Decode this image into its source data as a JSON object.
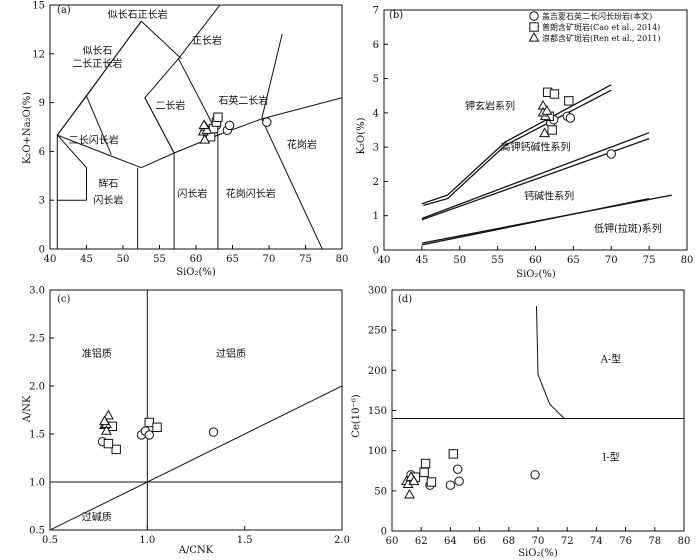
{
  "figure_markers": {
    "circle": "circle",
    "square": "square",
    "triangle": "triangle"
  },
  "chart_data": [
    {
      "id": "a",
      "type": "scatter",
      "panel_label": "(a)",
      "xlabel": "SiO₂(%)",
      "ylabel": "K₂O+Na₂O(%)",
      "xlim": [
        40,
        80
      ],
      "ylim": [
        0,
        15
      ],
      "xticks": [
        40,
        45,
        50,
        55,
        60,
        65,
        70,
        75,
        80
      ],
      "yticks": [
        0,
        3,
        6,
        9,
        12,
        15
      ],
      "field_lines": [
        [
          [
            41,
            0
          ],
          [
            41,
            7
          ],
          [
            52.5,
            14
          ]
        ],
        [
          [
            41,
            7
          ],
          [
            45,
            9.4
          ],
          [
            48.4,
            11.5
          ]
        ],
        [
          [
            41,
            7
          ],
          [
            52.5,
            5
          ]
        ],
        [
          [
            45,
            9.4
          ],
          [
            48.4,
            5.8
          ]
        ],
        [
          [
            52,
            0
          ],
          [
            52,
            5
          ]
        ],
        [
          [
            57,
            0
          ],
          [
            57,
            5.9
          ],
          [
            53,
            9.3
          ],
          [
            57.6,
            11.7
          ]
        ],
        [
          [
            48.4,
            11.5
          ],
          [
            52.5,
            14
          ]
        ],
        [
          [
            52.5,
            14
          ],
          [
            58,
            11.7
          ]
        ],
        [
          [
            57.6,
            11.7
          ],
          [
            65,
            16
          ]
        ],
        [
          [
            41,
            3
          ],
          [
            45,
            3
          ]
        ],
        [
          [
            45,
            3
          ],
          [
            45,
            5
          ],
          [
            41,
            7
          ]
        ],
        [
          [
            52.5,
            5
          ],
          [
            57,
            5.9
          ],
          [
            63,
            7
          ],
          [
            69,
            8
          ],
          [
            77.3,
            0
          ]
        ],
        [
          [
            63,
            0
          ],
          [
            63,
            7
          ],
          [
            61.2,
            8.6
          ]
        ],
        [
          [
            69,
            8
          ],
          [
            71.8,
            13.2
          ]
        ],
        [
          [
            69,
            8
          ],
          [
            80,
            9.3
          ]
        ],
        [
          [
            57,
            5.9
          ],
          [
            53,
            9.3
          ]
        ],
        [
          [
            61.2,
            8.6
          ],
          [
            57.6,
            11.7
          ]
        ]
      ],
      "field_labels": [
        {
          "text": "似长石正长岩",
          "x": 52,
          "y": 14.2
        },
        {
          "text": "正长岩",
          "x": 61.5,
          "y": 12.6
        },
        {
          "text": "似长石",
          "x": 46.5,
          "y": 12
        },
        {
          "text": "二长正长岩",
          "x": 46.5,
          "y": 11.2
        },
        {
          "text": "二长岩",
          "x": 56.5,
          "y": 8.6
        },
        {
          "text": "石英二长岩",
          "x": 66.5,
          "y": 8.9
        },
        {
          "text": "二长闪长岩",
          "x": 46,
          "y": 6.5
        },
        {
          "text": "花岗岩",
          "x": 74.5,
          "y": 6.2
        },
        {
          "text": "辉石",
          "x": 48,
          "y": 3.8
        },
        {
          "text": "闪长岩",
          "x": 48,
          "y": 2.8
        },
        {
          "text": "闪长岩",
          "x": 59.5,
          "y": 3.2
        },
        {
          "text": "花岗闪长岩",
          "x": 67.5,
          "y": 3.2
        }
      ],
      "series": [
        {
          "marker": "circle",
          "points": [
            [
              62.2,
              7.4
            ],
            [
              62.8,
              7.6
            ],
            [
              64.3,
              7.3
            ],
            [
              64.6,
              7.6
            ],
            [
              69.7,
              7.8
            ]
          ]
        },
        {
          "marker": "square",
          "points": [
            [
              61.6,
              7.2
            ],
            [
              62,
              6.9
            ],
            [
              62.4,
              7.4
            ],
            [
              62.8,
              7.8
            ],
            [
              63,
              8.1
            ]
          ]
        },
        {
          "marker": "triangle",
          "points": [
            [
              61.0,
              7.2
            ],
            [
              61.3,
              7.5
            ],
            [
              61.5,
              7.3
            ],
            [
              61.1,
              7.6
            ],
            [
              61.2,
              6.7
            ]
          ]
        }
      ]
    },
    {
      "id": "b",
      "type": "scatter",
      "panel_label": "(b)",
      "xlabel": "SiO₂(%)",
      "ylabel": "K₂O(%)",
      "xlim": [
        40,
        80
      ],
      "ylim": [
        0,
        7
      ],
      "xticks": [
        40,
        45,
        50,
        55,
        60,
        65,
        70,
        75,
        80
      ],
      "yticks": [
        0,
        1,
        2,
        3,
        4,
        5,
        6,
        7
      ],
      "field_lines": [
        [
          [
            45,
            1.35
          ],
          [
            48.4,
            1.6
          ],
          [
            56,
            3.15
          ],
          [
            70,
            4.82
          ]
        ],
        [
          [
            45.2,
            1.3
          ],
          [
            48.4,
            1.5
          ],
          [
            56,
            3.05
          ],
          [
            70,
            4.66
          ]
        ],
        [
          [
            45,
            0.92
          ],
          [
            75,
            3.42
          ]
        ],
        [
          [
            45,
            0.88
          ],
          [
            75,
            3.25
          ]
        ],
        [
          [
            45,
            0.2
          ],
          [
            78,
            1.6
          ]
        ],
        [
          [
            45,
            0.15
          ],
          [
            75,
            1.5
          ]
        ]
      ],
      "field_labels": [
        {
          "text": "钾玄岩系列",
          "x": 54,
          "y": 4.1
        },
        {
          "text": "高钾钙碱性系列",
          "x": 60,
          "y": 2.9
        },
        {
          "text": "钙碱性系列",
          "x": 61.8,
          "y": 1.48
        },
        {
          "text": "低钾(拉斑)系列",
          "x": 72.2,
          "y": 0.53
        }
      ],
      "legend": [
        {
          "marker": "circle",
          "label": "盖吉夏石英二长闪长玢岩(本文)"
        },
        {
          "marker": "square",
          "label": "普朗含矿斑岩(Cao et al., 2014)"
        },
        {
          "marker": "triangle",
          "label": "浪都含矿斑岩(Ren et al., 2011)"
        }
      ],
      "series": [
        {
          "marker": "circle",
          "points": [
            [
              62.0,
              3.7
            ],
            [
              62.4,
              3.8
            ],
            [
              64.2,
              3.9
            ],
            [
              64.6,
              3.85
            ],
            [
              70.0,
              2.8
            ]
          ]
        },
        {
          "marker": "square",
          "points": [
            [
              61.6,
              4.6
            ],
            [
              62.5,
              4.55
            ],
            [
              61.8,
              3.9
            ],
            [
              62.2,
              3.5
            ],
            [
              64.4,
              4.35
            ]
          ]
        },
        {
          "marker": "triangle",
          "points": [
            [
              61.0,
              4.2
            ],
            [
              61.2,
              3.4
            ],
            [
              61.3,
              3.9
            ],
            [
              61.0,
              4.0
            ],
            [
              61.5,
              4.05
            ]
          ]
        }
      ]
    },
    {
      "id": "c",
      "type": "scatter",
      "panel_label": "(c)",
      "xlabel": "A/CNK",
      "ylabel": "A/NK",
      "xlim": [
        0.5,
        2.0
      ],
      "ylim": [
        0.5,
        3.0
      ],
      "xticks": [
        0.5,
        1.0,
        1.5,
        2.0
      ],
      "yticks": [
        0.5,
        1.0,
        1.5,
        2.0,
        2.5,
        3.0
      ],
      "field_lines": [
        [
          [
            1.0,
            0.5
          ],
          [
            1.0,
            3.0
          ]
        ],
        [
          [
            0.5,
            1.0
          ],
          [
            2.0,
            1.0
          ]
        ],
        [
          [
            0.5,
            0.5
          ],
          [
            2.0,
            2.0
          ]
        ]
      ],
      "field_labels": [
        {
          "text": "准铝质",
          "x": 0.74,
          "y": 2.3
        },
        {
          "text": "过铝质",
          "x": 1.43,
          "y": 2.3
        },
        {
          "text": "过碱质",
          "x": 0.74,
          "y": 0.6
        }
      ],
      "series": [
        {
          "marker": "circle",
          "points": [
            [
              0.77,
              1.42
            ],
            [
              0.97,
              1.49
            ],
            [
              0.99,
              1.53
            ],
            [
              1.01,
              1.49
            ],
            [
              1.34,
              1.52
            ]
          ]
        },
        {
          "marker": "square",
          "points": [
            [
              0.82,
              1.58
            ],
            [
              0.84,
              1.34
            ],
            [
              1.01,
              1.62
            ],
            [
              0.8,
              1.4
            ],
            [
              1.05,
              1.57
            ]
          ]
        },
        {
          "marker": "triangle",
          "points": [
            [
              0.78,
              1.59
            ],
            [
              0.79,
              1.6
            ],
            [
              0.8,
              1.69
            ],
            [
              0.79,
              1.53
            ],
            [
              0.78,
              1.63
            ]
          ]
        }
      ]
    },
    {
      "id": "d",
      "type": "scatter",
      "panel_label": "(d)",
      "xlabel": "SiO₂(%)",
      "ylabel": "Ce(10⁻⁶)",
      "xlim": [
        60,
        80
      ],
      "ylim": [
        0,
        300
      ],
      "xticks": [
        60,
        62,
        64,
        66,
        68,
        70,
        72,
        74,
        76,
        78,
        80
      ],
      "yticks": [
        0,
        50,
        100,
        150,
        200,
        250,
        300
      ],
      "field_lines": [
        [
          [
            60,
            140
          ],
          [
            80,
            140
          ]
        ],
        [
          [
            69.9,
            280
          ],
          [
            70.0,
            195
          ],
          [
            70.8,
            158
          ],
          [
            71.8,
            140
          ]
        ]
      ],
      "field_labels": [
        {
          "text": "A-型",
          "x": 75,
          "y": 210
        },
        {
          "text": "I-型",
          "x": 75,
          "y": 88
        }
      ],
      "series": [
        {
          "marker": "circle",
          "points": [
            [
              61.3,
              70
            ],
            [
              62.6,
              57
            ],
            [
              64.0,
              57
            ],
            [
              64.5,
              77
            ],
            [
              64.6,
              62
            ],
            [
              69.8,
              70
            ]
          ]
        },
        {
          "marker": "square",
          "points": [
            [
              61.6,
              67
            ],
            [
              62.2,
              73
            ],
            [
              62.3,
              84
            ],
            [
              62.7,
              61
            ],
            [
              64.2,
              96
            ]
          ]
        },
        {
          "marker": "triangle",
          "points": [
            [
              61.0,
              62
            ],
            [
              61.1,
              58
            ],
            [
              61.2,
              45
            ],
            [
              61.3,
              67
            ],
            [
              61.5,
              62
            ]
          ]
        }
      ]
    }
  ]
}
